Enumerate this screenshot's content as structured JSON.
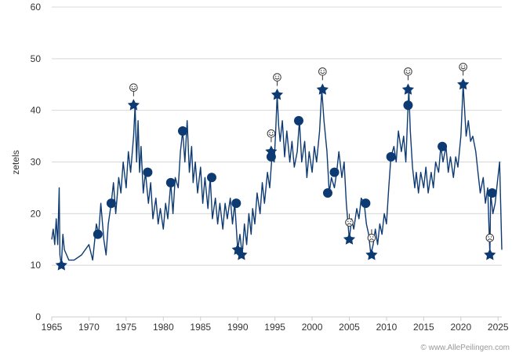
{
  "chart_data": {
    "type": "line",
    "title": "",
    "xlabel": "",
    "ylabel": "zetels",
    "xlim": [
      1965,
      2025.5
    ],
    "ylim": [
      0,
      60
    ],
    "x_ticks": [
      "1965",
      "1970",
      "1975",
      "1980",
      "1985",
      "1990",
      "1995",
      "2000",
      "2005",
      "2010",
      "2015",
      "2020",
      "2025"
    ],
    "y_ticks": [
      "0",
      "10",
      "20",
      "30",
      "40",
      "50",
      "60"
    ],
    "grid": "horizontal",
    "credit": "© www.AllePeilingen.com",
    "colors": {
      "series": "#0d3a73",
      "grid": "#d8d8d8",
      "axis": "#cccccc",
      "smiley": "#333333"
    },
    "series": [
      {
        "values": [
          [
            1965.0,
            15
          ],
          [
            1965.2,
            17
          ],
          [
            1965.4,
            14
          ],
          [
            1965.6,
            19
          ],
          [
            1965.8,
            14
          ],
          [
            1966.0,
            25
          ],
          [
            1966.1,
            12
          ],
          [
            1966.3,
            10
          ],
          [
            1966.5,
            16
          ],
          [
            1966.7,
            13
          ],
          [
            1967.0,
            12
          ],
          [
            1967.3,
            11
          ],
          [
            1968.0,
            11
          ],
          [
            1969.0,
            12
          ],
          [
            1970.0,
            14
          ],
          [
            1970.5,
            11
          ],
          [
            1971.0,
            18
          ],
          [
            1971.3,
            16
          ],
          [
            1971.6,
            22
          ],
          [
            1972.0,
            15
          ],
          [
            1972.3,
            12
          ],
          [
            1972.6,
            18
          ],
          [
            1973.0,
            22
          ],
          [
            1973.3,
            26
          ],
          [
            1973.6,
            20
          ],
          [
            1974.0,
            27
          ],
          [
            1974.3,
            24
          ],
          [
            1974.6,
            30
          ],
          [
            1975.0,
            25
          ],
          [
            1975.3,
            32
          ],
          [
            1975.6,
            28
          ],
          [
            1976.0,
            35
          ],
          [
            1976.2,
            41
          ],
          [
            1976.4,
            30
          ],
          [
            1976.6,
            38
          ],
          [
            1976.8,
            28
          ],
          [
            1977.0,
            33
          ],
          [
            1977.3,
            24
          ],
          [
            1977.6,
            28
          ],
          [
            1978.0,
            22
          ],
          [
            1978.3,
            26
          ],
          [
            1978.6,
            19
          ],
          [
            1979.0,
            23
          ],
          [
            1979.3,
            18
          ],
          [
            1979.6,
            21
          ],
          [
            1980.0,
            17
          ],
          [
            1980.3,
            22
          ],
          [
            1980.6,
            19
          ],
          [
            1981.0,
            26
          ],
          [
            1981.3,
            20
          ],
          [
            1981.6,
            27
          ],
          [
            1982.0,
            25
          ],
          [
            1982.3,
            32
          ],
          [
            1982.6,
            36
          ],
          [
            1982.9,
            30
          ],
          [
            1983.2,
            38
          ],
          [
            1983.5,
            28
          ],
          [
            1983.8,
            33
          ],
          [
            1984.0,
            26
          ],
          [
            1984.3,
            30
          ],
          [
            1984.6,
            24
          ],
          [
            1985.0,
            29
          ],
          [
            1985.3,
            22
          ],
          [
            1985.6,
            27
          ],
          [
            1986.0,
            21
          ],
          [
            1986.3,
            27
          ],
          [
            1986.6,
            19
          ],
          [
            1987.0,
            23
          ],
          [
            1987.3,
            18
          ],
          [
            1987.6,
            22
          ],
          [
            1988.0,
            17
          ],
          [
            1988.3,
            22
          ],
          [
            1988.6,
            19
          ],
          [
            1989.0,
            23
          ],
          [
            1989.3,
            18
          ],
          [
            1989.6,
            22
          ],
          [
            1990.0,
            13
          ],
          [
            1990.3,
            16
          ],
          [
            1990.6,
            12
          ],
          [
            1990.9,
            18
          ],
          [
            1991.2,
            14
          ],
          [
            1991.5,
            20
          ],
          [
            1991.8,
            16
          ],
          [
            1992.0,
            21
          ],
          [
            1992.3,
            18
          ],
          [
            1992.6,
            24
          ],
          [
            1993.0,
            20
          ],
          [
            1993.3,
            26
          ],
          [
            1993.6,
            22
          ],
          [
            1994.0,
            28
          ],
          [
            1994.3,
            25
          ],
          [
            1994.6,
            31
          ],
          [
            1994.9,
            30
          ],
          [
            1995.1,
            36
          ],
          [
            1995.3,
            43
          ],
          [
            1995.5,
            37
          ],
          [
            1995.7,
            34
          ],
          [
            1996.0,
            38
          ],
          [
            1996.3,
            31
          ],
          [
            1996.6,
            36
          ],
          [
            1997.0,
            30
          ],
          [
            1997.3,
            34
          ],
          [
            1997.6,
            29
          ],
          [
            1998.0,
            32
          ],
          [
            1998.3,
            38
          ],
          [
            1998.6,
            30
          ],
          [
            1999.0,
            34
          ],
          [
            1999.3,
            27
          ],
          [
            1999.6,
            32
          ],
          [
            2000.0,
            28
          ],
          [
            2000.3,
            33
          ],
          [
            2000.6,
            30
          ],
          [
            2001.0,
            36
          ],
          [
            2001.3,
            44
          ],
          [
            2001.6,
            38
          ],
          [
            2002.0,
            32
          ],
          [
            2002.3,
            24
          ],
          [
            2002.6,
            27
          ],
          [
            2003.0,
            25
          ],
          [
            2003.3,
            28
          ],
          [
            2003.6,
            32
          ],
          [
            2004.0,
            27
          ],
          [
            2004.3,
            30
          ],
          [
            2004.6,
            22
          ],
          [
            2005.0,
            15
          ],
          [
            2005.3,
            19
          ],
          [
            2005.6,
            17
          ],
          [
            2006.0,
            21
          ],
          [
            2006.3,
            19
          ],
          [
            2006.6,
            23
          ],
          [
            2007.0,
            22
          ],
          [
            2007.3,
            18
          ],
          [
            2007.6,
            16
          ],
          [
            2007.9,
            12
          ],
          [
            2008.2,
            14
          ],
          [
            2008.5,
            17
          ],
          [
            2008.8,
            14
          ],
          [
            2009.1,
            18
          ],
          [
            2009.4,
            16
          ],
          [
            2009.7,
            20
          ],
          [
            2010.0,
            18
          ],
          [
            2010.3,
            25
          ],
          [
            2010.6,
            31
          ],
          [
            2011.0,
            33
          ],
          [
            2011.3,
            30
          ],
          [
            2011.6,
            36
          ],
          [
            2012.0,
            32
          ],
          [
            2012.3,
            35
          ],
          [
            2012.6,
            30
          ],
          [
            2012.9,
            41
          ],
          [
            2013.0,
            44
          ],
          [
            2013.2,
            36
          ],
          [
            2013.5,
            29
          ],
          [
            2013.8,
            25
          ],
          [
            2014.0,
            28
          ],
          [
            2014.3,
            24
          ],
          [
            2014.6,
            28
          ],
          [
            2015.0,
            25
          ],
          [
            2015.3,
            29
          ],
          [
            2015.6,
            24
          ],
          [
            2016.0,
            28
          ],
          [
            2016.3,
            25
          ],
          [
            2016.6,
            30
          ],
          [
            2017.0,
            28
          ],
          [
            2017.3,
            33
          ],
          [
            2017.6,
            30
          ],
          [
            2018.0,
            33
          ],
          [
            2018.3,
            28
          ],
          [
            2018.6,
            31
          ],
          [
            2019.0,
            27
          ],
          [
            2019.3,
            31
          ],
          [
            2019.6,
            29
          ],
          [
            2020.0,
            35
          ],
          [
            2020.3,
            45
          ],
          [
            2020.5,
            40
          ],
          [
            2020.7,
            35
          ],
          [
            2021.0,
            38
          ],
          [
            2021.3,
            34
          ],
          [
            2021.6,
            35
          ],
          [
            2022.0,
            32
          ],
          [
            2022.3,
            28
          ],
          [
            2022.6,
            24
          ],
          [
            2023.0,
            27
          ],
          [
            2023.3,
            22
          ],
          [
            2023.6,
            25
          ],
          [
            2023.9,
            12
          ],
          [
            2024.0,
            24
          ],
          [
            2024.3,
            20
          ],
          [
            2024.6,
            22
          ],
          [
            2024.9,
            26
          ],
          [
            2025.2,
            30
          ],
          [
            2025.5,
            13
          ]
        ]
      }
    ],
    "markers": {
      "circles": [
        [
          1971.2,
          16
        ],
        [
          1973.0,
          22
        ],
        [
          1977.9,
          28
        ],
        [
          1981.0,
          26
        ],
        [
          1982.6,
          36
        ],
        [
          1986.5,
          27
        ],
        [
          1989.8,
          22
        ],
        [
          1994.5,
          31
        ],
        [
          1998.2,
          38
        ],
        [
          2002.1,
          24
        ],
        [
          2003.0,
          28
        ],
        [
          2007.2,
          22
        ],
        [
          2010.6,
          31
        ],
        [
          2012.9,
          41
        ],
        [
          2017.5,
          33
        ],
        [
          2024.2,
          24
        ]
      ],
      "stars": [
        [
          1966.3,
          10
        ],
        [
          1976.0,
          41
        ],
        [
          1990.0,
          13
        ],
        [
          1990.5,
          12
        ],
        [
          1994.5,
          32
        ],
        [
          1995.3,
          43
        ],
        [
          2001.4,
          44
        ],
        [
          2005.0,
          15
        ],
        [
          2008.0,
          12
        ],
        [
          2012.9,
          44
        ],
        [
          2020.3,
          45
        ],
        [
          2023.9,
          12
        ]
      ],
      "smileys_happy": [
        [
          1976.0,
          44.4
        ],
        [
          1994.5,
          35.5
        ],
        [
          1995.3,
          46.4
        ],
        [
          2001.4,
          47.5
        ],
        [
          2012.9,
          47.5
        ],
        [
          2020.3,
          48.4
        ]
      ],
      "smileys_sad": [
        [
          2005.0,
          18.3
        ],
        [
          2008.0,
          15.3
        ],
        [
          2023.9,
          15.3
        ]
      ]
    }
  }
}
